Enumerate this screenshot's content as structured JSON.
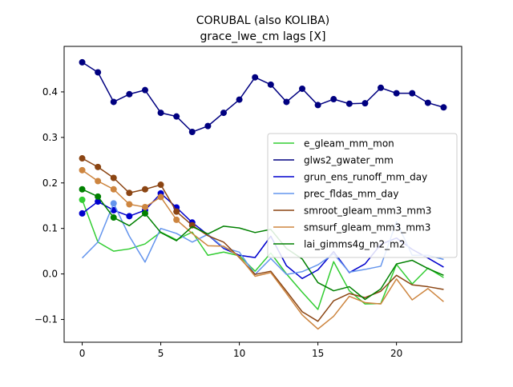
{
  "chart_data": {
    "type": "line",
    "title": "CORUBAL (also KOLIBA)",
    "subtitle": "grace_lwe_cm lags [X]",
    "xlabel": "",
    "ylabel": "",
    "xlim": [
      -1.15,
      24.15
    ],
    "ylim": [
      -0.15,
      0.5
    ],
    "xticks": [
      0,
      5,
      10,
      15,
      20
    ],
    "yticks": [
      -0.1,
      0.0,
      0.1,
      0.2,
      0.3,
      0.4
    ],
    "ytick_labels": [
      "−0.1",
      "0.0",
      "0.1",
      "0.2",
      "0.3",
      "0.4"
    ],
    "grid": false,
    "legend_position": "center-right",
    "x": [
      0,
      1,
      2,
      3,
      4,
      5,
      6,
      7,
      8,
      9,
      10,
      11,
      12,
      13,
      14,
      15,
      16,
      17,
      18,
      19,
      20,
      21,
      22,
      23
    ],
    "series": [
      {
        "name": "e_gleam_mm_mon",
        "color": "#32cd32",
        "values": [
          0.163,
          0.07,
          0.05,
          0.055,
          0.066,
          0.092,
          0.075,
          0.092,
          0.041,
          0.048,
          0.04,
          0.006,
          0.046,
          0.0,
          -0.04,
          -0.078,
          0.027,
          -0.037,
          -0.066,
          -0.065,
          0.021,
          -0.022,
          0.013,
          -0.008
        ],
        "markers": [
          0
        ]
      },
      {
        "name": "glws2_gwater_mm",
        "color": "#000080",
        "values": [
          0.465,
          0.443,
          0.378,
          0.395,
          0.404,
          0.354,
          0.346,
          0.312,
          0.325,
          0.354,
          0.383,
          0.432,
          0.416,
          0.378,
          0.407,
          0.371,
          0.384,
          0.374,
          0.375,
          0.409,
          0.397,
          0.397,
          0.376,
          0.366
        ],
        "markers": [
          0,
          1,
          2,
          3,
          4,
          5,
          6,
          7,
          8,
          9,
          10,
          11,
          12,
          13,
          14,
          15,
          16,
          17,
          18,
          19,
          20,
          21,
          22,
          23
        ]
      },
      {
        "name": "grun_ens_runoff_mm_day",
        "color": "#0000cd",
        "values": [
          0.133,
          0.159,
          0.14,
          0.127,
          0.14,
          0.177,
          0.146,
          0.113,
          0.086,
          0.056,
          0.041,
          0.036,
          0.083,
          0.018,
          -0.01,
          0.009,
          0.049,
          0.003,
          0.022,
          0.065,
          0.079,
          0.054,
          0.035,
          0.015
        ],
        "markers": [
          0,
          1,
          2,
          3,
          4,
          5,
          6,
          7
        ]
      },
      {
        "name": "prec_fldas_mm_day",
        "color": "#6495ed",
        "values": [
          0.035,
          0.07,
          0.155,
          0.083,
          0.026,
          0.1,
          0.089,
          0.07,
          0.087,
          0.058,
          0.048,
          -0.001,
          0.034,
          -0.001,
          0.005,
          0.02,
          0.044,
          0.004,
          0.01,
          0.017,
          0.115,
          0.041,
          0.041,
          0.032
        ],
        "markers": [
          2
        ]
      },
      {
        "name": "smroot_gleam_mm3_mm3",
        "color": "#8b4513",
        "values": [
          0.254,
          0.235,
          0.211,
          0.178,
          0.186,
          0.196,
          0.137,
          0.107,
          0.084,
          0.07,
          0.036,
          -0.001,
          0.006,
          -0.038,
          -0.083,
          -0.104,
          -0.059,
          -0.043,
          -0.052,
          -0.038,
          -0.003,
          -0.024,
          -0.028,
          -0.034
        ],
        "markers": [
          0,
          1,
          2,
          3,
          4,
          5,
          6,
          7
        ]
      },
      {
        "name": "smsurf_gleam_mm3_mm3",
        "color": "#cd853f",
        "values": [
          0.228,
          0.204,
          0.186,
          0.153,
          0.147,
          0.169,
          0.119,
          0.089,
          0.062,
          0.061,
          0.038,
          -0.005,
          0.003,
          -0.043,
          -0.09,
          -0.121,
          -0.093,
          -0.049,
          -0.063,
          -0.066,
          -0.011,
          -0.057,
          -0.032,
          -0.061
        ],
        "markers": [
          0,
          1,
          2,
          3,
          4,
          5,
          6
        ]
      },
      {
        "name": "lai_gimms4g_m2_m2",
        "color": "#008000",
        "values": [
          0.186,
          0.17,
          0.124,
          0.106,
          0.133,
          0.091,
          0.073,
          0.104,
          0.088,
          0.105,
          0.101,
          0.091,
          0.098,
          0.056,
          0.033,
          -0.019,
          -0.037,
          -0.028,
          -0.056,
          -0.033,
          0.022,
          0.03,
          0.012,
          -0.003
        ],
        "markers": [
          0,
          1,
          2,
          4
        ]
      }
    ]
  }
}
